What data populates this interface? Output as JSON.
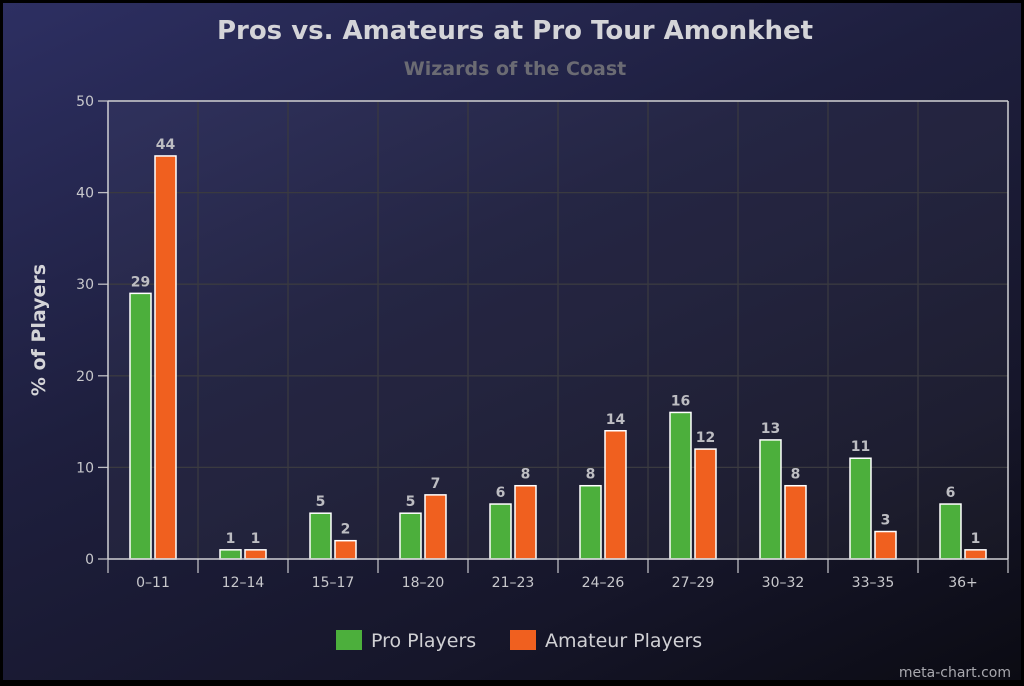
{
  "chart_data": {
    "type": "bar",
    "title": "Pros vs. Amateurs at Pro Tour Amonkhet",
    "subtitle": "Wizards of the Coast",
    "ylabel": "% of Players",
    "xlabel": "",
    "ylim": [
      0,
      50
    ],
    "yticks": [
      0,
      10,
      20,
      30,
      40,
      50
    ],
    "grid": true,
    "legend": "bottom",
    "categories": [
      "0–11",
      "12–14",
      "15–17",
      "18–20",
      "21–23",
      "24–26",
      "27–29",
      "30–32",
      "33–35",
      "36+"
    ],
    "series": [
      {
        "name": "Pro Players",
        "color": "#4caf3c",
        "values": [
          29,
          1,
          5,
          5,
          6,
          8,
          16,
          13,
          11,
          6
        ],
        "labels": [
          "29",
          "1",
          "5",
          "5",
          "6",
          "8",
          "16",
          "13",
          "11",
          "6"
        ]
      },
      {
        "name": "Amateur Players",
        "color": "#f0601f",
        "values": [
          44,
          1,
          2,
          7,
          8,
          14,
          12,
          8,
          3,
          1
        ],
        "labels": [
          "44",
          "1",
          "2",
          "7",
          "8",
          "14",
          "12",
          "8",
          "3",
          "1"
        ]
      }
    ]
  },
  "credit": "meta-chart.com"
}
